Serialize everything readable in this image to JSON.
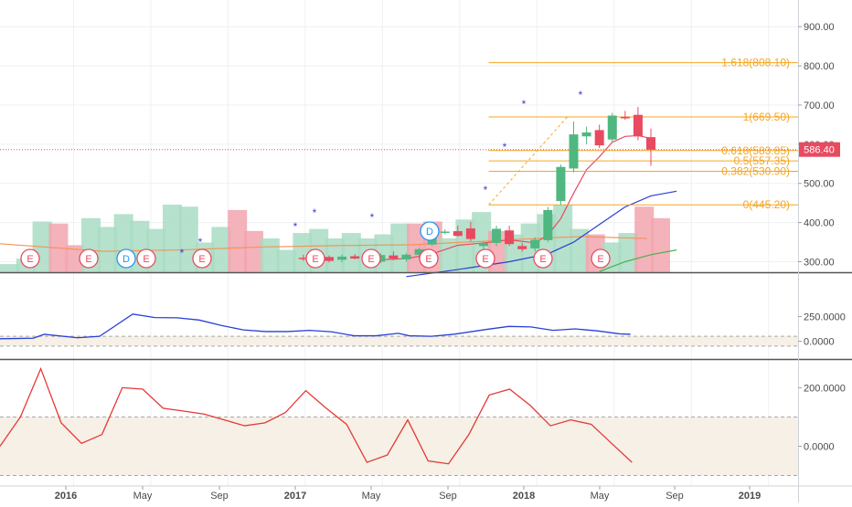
{
  "colors": {
    "up": "#4fb77f",
    "down": "#e84a5f",
    "vol_up": "#a9dcc3",
    "vol_down": "#f2a5ae",
    "fib": "#f5a623",
    "ma_short": "#e84a5f",
    "ma_long": "#2a3fd6",
    "ma_green": "#4caf50",
    "vol_ma": "#f2955a",
    "price_line": "#e84a5f",
    "ind1": "#2a3fd6",
    "ind2": "#e53935",
    "band": "#f6f0e6"
  },
  "chart_data": [
    {
      "type": "candlestick",
      "panel": "price",
      "ylim": [
        270,
        950
      ],
      "y_ticks": [
        "300.00",
        "400.00",
        "500.00",
        "600.00",
        "700.00",
        "800.00",
        "900.00"
      ],
      "x_ticks": [
        "2016",
        "May",
        "Sep",
        "2017",
        "May",
        "Sep",
        "2018",
        "May",
        "Sep",
        "2019"
      ],
      "candles": [
        {
          "t": 23,
          "o": 310,
          "h": 318,
          "l": 302,
          "c": 307
        },
        {
          "t": 24,
          "o": 305,
          "h": 318,
          "l": 300,
          "c": 312
        },
        {
          "t": 25,
          "o": 312,
          "h": 316,
          "l": 298,
          "c": 302
        },
        {
          "t": 26,
          "o": 305,
          "h": 318,
          "l": 298,
          "c": 313
        },
        {
          "t": 27,
          "o": 314,
          "h": 320,
          "l": 306,
          "c": 308
        },
        {
          "t": 28,
          "o": 308,
          "h": 312,
          "l": 292,
          "c": 300
        },
        {
          "t": 29,
          "o": 300,
          "h": 322,
          "l": 296,
          "c": 317
        },
        {
          "t": 30,
          "o": 316,
          "h": 326,
          "l": 304,
          "c": 308
        },
        {
          "t": 31,
          "o": 306,
          "h": 322,
          "l": 300,
          "c": 318
        },
        {
          "t": 32,
          "o": 318,
          "h": 336,
          "l": 308,
          "c": 332
        },
        {
          "t": 33,
          "o": 344,
          "h": 378,
          "l": 340,
          "c": 376
        },
        {
          "t": 34,
          "o": 376,
          "h": 383,
          "l": 370,
          "c": 377
        },
        {
          "t": 35,
          "o": 378,
          "h": 392,
          "l": 364,
          "c": 366
        },
        {
          "t": 36,
          "o": 385,
          "h": 402,
          "l": 352,
          "c": 358
        },
        {
          "t": 37,
          "o": 340,
          "h": 352,
          "l": 330,
          "c": 348
        },
        {
          "t": 38,
          "o": 348,
          "h": 392,
          "l": 340,
          "c": 384
        },
        {
          "t": 39,
          "o": 380,
          "h": 392,
          "l": 340,
          "c": 345
        },
        {
          "t": 40,
          "o": 340,
          "h": 348,
          "l": 326,
          "c": 332
        },
        {
          "t": 41,
          "o": 334,
          "h": 362,
          "l": 326,
          "c": 356
        },
        {
          "t": 42,
          "o": 355,
          "h": 440,
          "l": 350,
          "c": 432
        },
        {
          "t": 43,
          "o": 455,
          "h": 548,
          "l": 445,
          "c": 542
        },
        {
          "t": 44,
          "o": 538,
          "h": 658,
          "l": 528,
          "c": 625
        },
        {
          "t": 45,
          "o": 620,
          "h": 645,
          "l": 600,
          "c": 630
        },
        {
          "t": 46,
          "o": 636,
          "h": 650,
          "l": 590,
          "c": 597
        },
        {
          "t": 47,
          "o": 612,
          "h": 680,
          "l": 604,
          "c": 673
        },
        {
          "t": 48,
          "o": 670,
          "h": 685,
          "l": 662,
          "c": 666
        },
        {
          "t": 49,
          "o": 675,
          "h": 695,
          "l": 610,
          "c": 620
        },
        {
          "t": 50,
          "o": 618,
          "h": 640,
          "l": 545,
          "c": 586
        }
      ],
      "volume_overlay": [
        {
          "t": 10,
          "v": 0.12,
          "dir": "up"
        },
        {
          "t": 11,
          "v": 0.2,
          "dir": "up"
        },
        {
          "t": 12,
          "v": 0.75,
          "dir": "up"
        },
        {
          "t": 13,
          "v": 0.72,
          "dir": "down"
        },
        {
          "t": 14,
          "v": 0.4,
          "dir": "down"
        },
        {
          "t": 15,
          "v": 0.8,
          "dir": "up"
        },
        {
          "t": 16,
          "v": 0.67,
          "dir": "up"
        },
        {
          "t": 17,
          "v": 0.86,
          "dir": "up"
        },
        {
          "t": 18,
          "v": 0.76,
          "dir": "up"
        },
        {
          "t": 19,
          "v": 0.64,
          "dir": "up"
        },
        {
          "t": 20,
          "v": 1.0,
          "dir": "up"
        },
        {
          "t": 21,
          "v": 0.97,
          "dir": "up"
        },
        {
          "t": 22,
          "v": 0.44,
          "dir": "up"
        },
        {
          "t": 23,
          "v": 0.67,
          "dir": "up"
        },
        {
          "t": 24,
          "v": 0.92,
          "dir": "down"
        },
        {
          "t": 25,
          "v": 0.61,
          "dir": "down"
        },
        {
          "t": 26,
          "v": 0.5,
          "dir": "up"
        },
        {
          "t": 27,
          "v": 0.33,
          "dir": "up"
        },
        {
          "t": 28,
          "v": 0.58,
          "dir": "up"
        },
        {
          "t": 29,
          "v": 0.64,
          "dir": "up"
        },
        {
          "t": 30,
          "v": 0.5,
          "dir": "up"
        },
        {
          "t": 31,
          "v": 0.58,
          "dir": "up"
        },
        {
          "t": 32,
          "v": 0.5,
          "dir": "up"
        },
        {
          "t": 33,
          "v": 0.56,
          "dir": "up"
        },
        {
          "t": 34,
          "v": 0.72,
          "dir": "up"
        },
        {
          "t": 35,
          "v": 0.72,
          "dir": "down"
        },
        {
          "t": 36,
          "v": 0.75,
          "dir": "down"
        },
        {
          "t": 37,
          "v": 0.5,
          "dir": "up"
        },
        {
          "t": 38,
          "v": 0.78,
          "dir": "up"
        },
        {
          "t": 39,
          "v": 0.89,
          "dir": "up"
        },
        {
          "t": 40,
          "v": 0.61,
          "dir": "down"
        },
        {
          "t": 41,
          "v": 0.56,
          "dir": "up"
        },
        {
          "t": 42,
          "v": 0.72,
          "dir": "up"
        },
        {
          "t": 43,
          "v": 0.86,
          "dir": "up"
        },
        {
          "t": 44,
          "v": 1.0,
          "dir": "up"
        },
        {
          "t": 45,
          "v": 0.64,
          "dir": "up"
        },
        {
          "t": 46,
          "v": 0.56,
          "dir": "down"
        },
        {
          "t": 47,
          "v": 0.44,
          "dir": "up"
        },
        {
          "t": 48,
          "v": 0.58,
          "dir": "up"
        },
        {
          "t": 49,
          "v": 0.97,
          "dir": "down"
        },
        {
          "t": 50,
          "v": 0.8,
          "dir": "down"
        }
      ],
      "volume_ma": [
        {
          "t": 0,
          "v": 0.6
        },
        {
          "t": 8,
          "v": 0.44
        },
        {
          "t": 14,
          "v": 0.47
        },
        {
          "t": 20,
          "v": 0.53
        },
        {
          "t": 26,
          "v": 0.56
        },
        {
          "t": 32,
          "v": 0.58
        },
        {
          "t": 38,
          "v": 0.66
        },
        {
          "t": 42,
          "v": 0.72
        },
        {
          "t": 45,
          "v": 0.75
        },
        {
          "t": 50,
          "v": 0.71
        }
      ],
      "ma_short": [
        {
          "t": 29,
          "v": 305
        },
        {
          "t": 31,
          "v": 308
        },
        {
          "t": 33,
          "v": 320
        },
        {
          "t": 35,
          "v": 342
        },
        {
          "t": 37,
          "v": 348
        },
        {
          "t": 39,
          "v": 356
        },
        {
          "t": 41,
          "v": 348
        },
        {
          "t": 42,
          "v": 368
        },
        {
          "t": 43,
          "v": 410
        },
        {
          "t": 44,
          "v": 475
        },
        {
          "t": 45,
          "v": 535
        },
        {
          "t": 46,
          "v": 568
        },
        {
          "t": 47,
          "v": 605
        },
        {
          "t": 48,
          "v": 620
        },
        {
          "t": 49,
          "v": 622
        },
        {
          "t": 50,
          "v": 615
        }
      ],
      "ma_long": [
        {
          "t": 31,
          "v": 262
        },
        {
          "t": 35,
          "v": 280
        },
        {
          "t": 39,
          "v": 300
        },
        {
          "t": 42,
          "v": 320
        },
        {
          "t": 44,
          "v": 350
        },
        {
          "t": 46,
          "v": 395
        },
        {
          "t": 48,
          "v": 440
        },
        {
          "t": 50,
          "v": 468
        },
        {
          "t": 52,
          "v": 480
        }
      ],
      "ma_green": [
        {
          "t": 46,
          "v": 275
        },
        {
          "t": 48,
          "v": 300
        },
        {
          "t": 50,
          "v": 318
        },
        {
          "t": 52,
          "v": 330
        }
      ],
      "fib_levels": [
        {
          "ratio": "1.618",
          "price": 808.1,
          "label": "1.618(808.10)"
        },
        {
          "ratio": "1",
          "price": 669.5,
          "label": "1(669.50)"
        },
        {
          "ratio": "0.618",
          "price": 583.85,
          "label": "0.618(583.85)"
        },
        {
          "ratio": "0.5",
          "price": 557.35,
          "label": "0.5(557.35)"
        },
        {
          "ratio": "0.382",
          "price": 530.9,
          "label": "0.382(530.90)"
        },
        {
          "ratio": "0",
          "price": 445.2,
          "label": "0(445.20)"
        }
      ],
      "last_price": {
        "value": 586.4,
        "label": "586.40"
      },
      "event_markers": [
        {
          "t": 2,
          "label": "E",
          "kind": "earnings"
        },
        {
          "t": 7,
          "label": "E",
          "kind": "earnings"
        },
        {
          "t": 12,
          "label": "D",
          "kind": "dividend"
        },
        {
          "t": 13,
          "label": "E",
          "kind": "earnings"
        },
        {
          "t": 18,
          "label": "E",
          "kind": "earnings"
        },
        {
          "t": 28,
          "label": "E",
          "kind": "earnings"
        },
        {
          "t": 33,
          "label": "E",
          "kind": "earnings"
        },
        {
          "t": 38,
          "label": "D",
          "kind": "dividend"
        },
        {
          "t": 38,
          "label": "E",
          "kind": "earnings"
        },
        {
          "t": 43,
          "label": "E",
          "kind": "earnings"
        },
        {
          "t": 48,
          "label": "E",
          "kind": "earnings"
        },
        {
          "t": 53,
          "label": "E",
          "kind": "earnings"
        }
      ],
      "signal_markers": [
        {
          "t": 16,
          "label": "*"
        },
        {
          "t": 18,
          "label": "*"
        },
        {
          "t": 26,
          "label": "*"
        },
        {
          "t": 28,
          "label": "*"
        },
        {
          "t": 33,
          "label": "*"
        },
        {
          "t": 43,
          "label": "*"
        },
        {
          "t": 45,
          "label": "*"
        },
        {
          "t": 46,
          "label": "*"
        },
        {
          "t": 51,
          "label": "*"
        }
      ]
    },
    {
      "type": "line",
      "panel": "indicator-1",
      "ylim": [
        -50,
        300
      ],
      "y_ticks": [
        "250.0000",
        "0.0000"
      ],
      "band": [
        -50,
        50
      ],
      "points": [
        {
          "t": 0,
          "v": 25
        },
        {
          "t": 3,
          "v": 30
        },
        {
          "t": 4,
          "v": 70
        },
        {
          "t": 7,
          "v": 35
        },
        {
          "t": 9,
          "v": 50
        },
        {
          "t": 12,
          "v": 275
        },
        {
          "t": 14,
          "v": 240
        },
        {
          "t": 16,
          "v": 238
        },
        {
          "t": 18,
          "v": 215
        },
        {
          "t": 20,
          "v": 160
        },
        {
          "t": 22,
          "v": 115
        },
        {
          "t": 24,
          "v": 98
        },
        {
          "t": 26,
          "v": 98
        },
        {
          "t": 28,
          "v": 110
        },
        {
          "t": 30,
          "v": 95
        },
        {
          "t": 32,
          "v": 55
        },
        {
          "t": 34,
          "v": 55
        },
        {
          "t": 36,
          "v": 80
        },
        {
          "t": 37,
          "v": 55
        },
        {
          "t": 39,
          "v": 50
        },
        {
          "t": 41,
          "v": 70
        },
        {
          "t": 44,
          "v": 120
        },
        {
          "t": 46,
          "v": 150
        },
        {
          "t": 48,
          "v": 145
        },
        {
          "t": 50,
          "v": 110
        },
        {
          "t": 52,
          "v": 125
        },
        {
          "t": 54,
          "v": 105
        },
        {
          "t": 56,
          "v": 75
        },
        {
          "t": 57,
          "v": 70
        }
      ]
    },
    {
      "type": "line",
      "panel": "indicator-2",
      "ylim": [
        -120,
        300
      ],
      "y_ticks": [
        "200.0000",
        "0.0000"
      ],
      "band": [
        -100,
        100
      ],
      "points": [
        {
          "t": 0,
          "v": 0
        },
        {
          "t": 1,
          "v": 100
        },
        {
          "t": 2,
          "v": 265
        },
        {
          "t": 3,
          "v": 80
        },
        {
          "t": 4,
          "v": 10
        },
        {
          "t": 5,
          "v": 40
        },
        {
          "t": 6,
          "v": 200
        },
        {
          "t": 7,
          "v": 195
        },
        {
          "t": 8,
          "v": 130
        },
        {
          "t": 9,
          "v": 120
        },
        {
          "t": 10,
          "v": 110
        },
        {
          "t": 11,
          "v": 90
        },
        {
          "t": 12,
          "v": 70
        },
        {
          "t": 13,
          "v": 80
        },
        {
          "t": 14,
          "v": 115
        },
        {
          "t": 15,
          "v": 190
        },
        {
          "t": 16,
          "v": 130
        },
        {
          "t": 17,
          "v": 75
        },
        {
          "t": 18,
          "v": -55
        },
        {
          "t": 19,
          "v": -30
        },
        {
          "t": 20,
          "v": 90
        },
        {
          "t": 21,
          "v": -50
        },
        {
          "t": 22,
          "v": -60
        },
        {
          "t": 23,
          "v": 40
        },
        {
          "t": 24,
          "v": 175
        },
        {
          "t": 25,
          "v": 195
        },
        {
          "t": 26,
          "v": 140
        },
        {
          "t": 27,
          "v": 70
        },
        {
          "t": 28,
          "v": 90
        },
        {
          "t": 29,
          "v": 75
        },
        {
          "t": 30,
          "v": 10
        },
        {
          "t": 31,
          "v": -55
        }
      ]
    }
  ]
}
